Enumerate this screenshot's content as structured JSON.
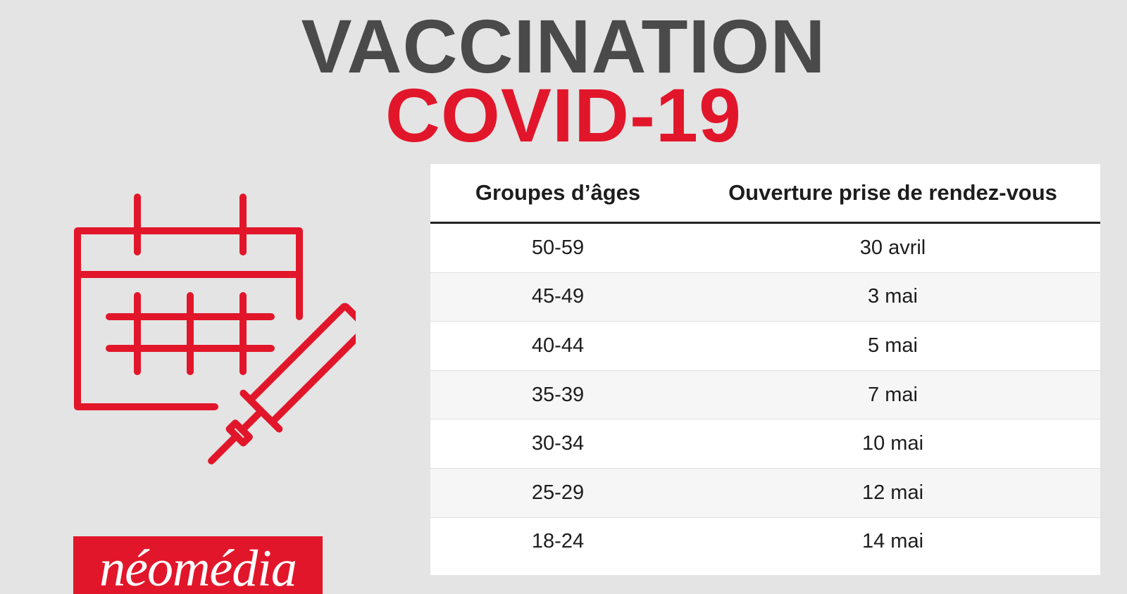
{
  "title": {
    "line1": "VACCINATION",
    "line2": "COVID-19"
  },
  "table": {
    "headers": [
      "Groupes d’âges",
      "Ouverture prise de rendez-vous"
    ],
    "rows": [
      {
        "age_group": "50-59",
        "opening": "30 avril"
      },
      {
        "age_group": "45-49",
        "opening": "3 mai"
      },
      {
        "age_group": "40-44",
        "opening": "5 mai"
      },
      {
        "age_group": "35-39",
        "opening": "7 mai"
      },
      {
        "age_group": "30-34",
        "opening": "10 mai"
      },
      {
        "age_group": "25-29",
        "opening": "12 mai"
      },
      {
        "age_group": "18-24",
        "opening": "14 mai"
      }
    ]
  },
  "icons": {
    "illustration": "calendar-syringe-icon"
  },
  "logo": {
    "text": "néomédia"
  },
  "colors": {
    "accent": "#e2162a",
    "title_gray": "#4a4a4a",
    "background": "#e4e4e4"
  }
}
